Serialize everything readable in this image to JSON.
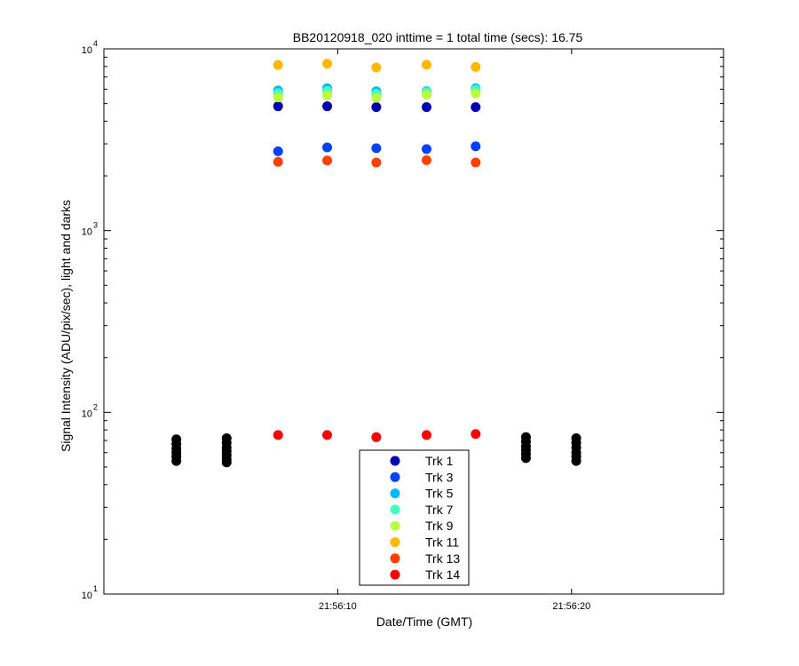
{
  "chart_data": {
    "type": "scatter",
    "title": "BB20120918_020 inttime = 1 total time (secs): 16.75",
    "xlabel": "Date/Time (GMT)",
    "ylabel": "Signal Intensity (ADU/pix/sec), light and darks",
    "yscale": "log",
    "ylim": [
      10,
      10000
    ],
    "xlim_seconds": [
      0,
      26.5
    ],
    "x_ticks": [
      {
        "t": 10,
        "label": "21:56:10"
      },
      {
        "t": 20,
        "label": "21:56:20"
      }
    ],
    "y_ticks": [
      {
        "value": 10,
        "base": "10",
        "exp": "1"
      },
      {
        "value": 100,
        "base": "10",
        "exp": "2"
      },
      {
        "value": 1000,
        "base": "10",
        "exp": "3"
      },
      {
        "value": 10000,
        "base": "10",
        "exp": "4"
      }
    ],
    "x_light": [
      7.45,
      9.55,
      11.65,
      13.8,
      15.9
    ],
    "series": [
      {
        "name": "Trk 1",
        "color": "#0000b0",
        "values": [
          4830,
          4830,
          4780,
          4780,
          4780
        ]
      },
      {
        "name": "Trk 3",
        "color": "#0040ff",
        "values": [
          2730,
          2870,
          2840,
          2810,
          2910
        ]
      },
      {
        "name": "Trk 5",
        "color": "#00b8ff",
        "values": [
          5900,
          6070,
          5840,
          5850,
          6070
        ]
      },
      {
        "name": "Trk 7",
        "color": "#40ffc0",
        "values": [
          5700,
          5870,
          5660,
          5790,
          5960
        ]
      },
      {
        "name": "Trk 9",
        "color": "#b8ff40",
        "values": [
          5400,
          5550,
          5380,
          5600,
          5680
        ]
      },
      {
        "name": "Trk 11",
        "color": "#ffb800",
        "values": [
          8150,
          8280,
          7900,
          8180,
          7950
        ]
      },
      {
        "name": "Trk 13",
        "color": "#ff4000",
        "values": [
          2390,
          2430,
          2370,
          2440,
          2370
        ]
      },
      {
        "name": "Trk 14",
        "color": "#ff0000",
        "values": [
          75,
          75,
          73,
          75,
          76
        ]
      }
    ],
    "darks": {
      "color": "#000000",
      "x": [
        3.1,
        5.25,
        18.05,
        20.2
      ],
      "values": [
        [
          71,
          67,
          63,
          60,
          57,
          54
        ],
        [
          72,
          68,
          64,
          61,
          58,
          55,
          53
        ],
        [
          73,
          69,
          65,
          62,
          59,
          56
        ],
        [
          72,
          68,
          64,
          60,
          57,
          54
        ]
      ]
    },
    "legend_location": "bottom-center",
    "grid": false
  }
}
